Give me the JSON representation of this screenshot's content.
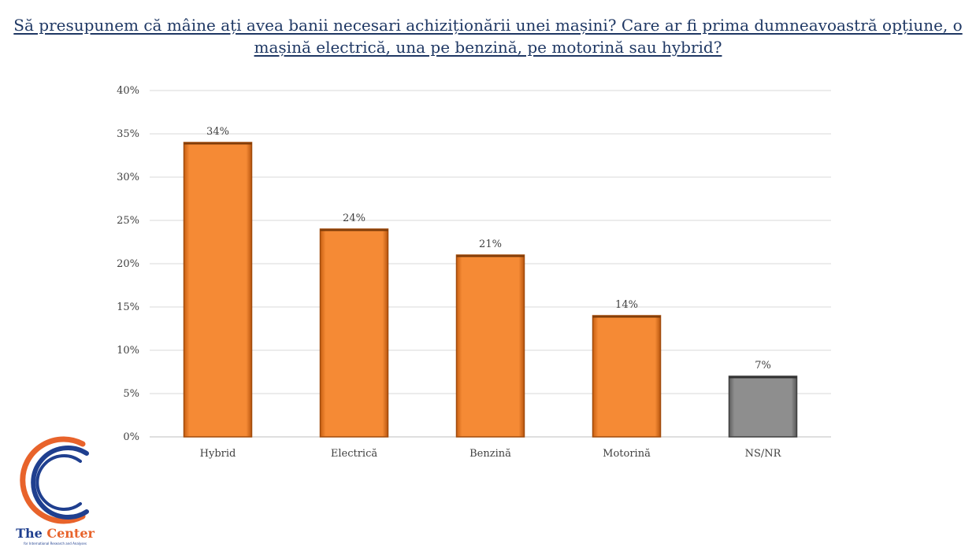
{
  "title": "Să presupunem că mâine ați avea banii necesari achiziționării unei mașini? Care ar fi prima dumneavoastră opțiune, o mașină electrică, una pe benzină, pe motorină sau hybrid?",
  "chart_data": {
    "type": "bar",
    "categories": [
      "Hybrid",
      "Electrică",
      "Benzină",
      "Motorină",
      "NS/NR"
    ],
    "values": [
      34,
      24,
      21,
      14,
      7
    ],
    "data_labels": [
      "34%",
      "24%",
      "21%",
      "14%",
      "7%"
    ],
    "bar_colors": [
      "#F5832A",
      "#F5832A",
      "#F5832A",
      "#F5832A",
      "#8C8C8C"
    ],
    "ylim": [
      0,
      40
    ],
    "yticks": [
      0,
      5,
      10,
      15,
      20,
      25,
      30,
      35,
      40
    ],
    "ytick_labels": [
      "0%",
      "5%",
      "10%",
      "15%",
      "20%",
      "25%",
      "30%",
      "35%",
      "40%"
    ],
    "grid": true,
    "legend": "none"
  },
  "logo": {
    "text_main": "The ",
    "text_accent": "Center",
    "subtitle": "for International Research and Analyses",
    "colors": {
      "blue": "#1F3F8F",
      "orange": "#E8632B"
    }
  }
}
